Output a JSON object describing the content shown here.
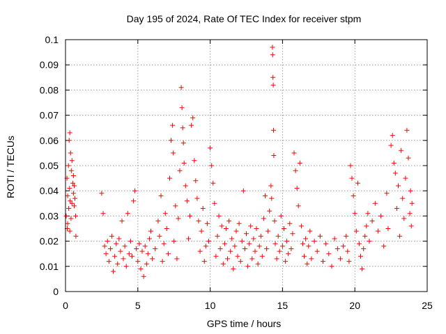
{
  "chart_data": {
    "type": "scatter",
    "title": "Day 195 of 2024, Rate Of TEC Index for receiver stpm",
    "xlabel": "GPS time / hours",
    "ylabel": "ROTI / TECUs",
    "xlim": [
      0,
      25
    ],
    "ylim": [
      0,
      0.1
    ],
    "xticks": [
      0,
      5,
      10,
      15,
      20,
      25
    ],
    "xtick_labels": [
      "0",
      "5",
      "10",
      "15",
      "20",
      "25"
    ],
    "yticks": [
      0,
      0.01,
      0.02,
      0.03,
      0.04,
      0.05,
      0.06,
      0.07,
      0.08,
      0.09,
      0.1
    ],
    "ytick_labels": [
      "0",
      "0.01",
      "0.02",
      "0.03",
      "0.04",
      "0.05",
      "0.06",
      "0.07",
      "0.08",
      "0.09",
      "0.1"
    ],
    "grid": true,
    "marker": "+",
    "color": "#ff0000",
    "series": [
      {
        "name": "ROTI",
        "points": [
          [
            0.05,
            0.03
          ],
          [
            0.1,
            0.045
          ],
          [
            0.12,
            0.025
          ],
          [
            0.15,
            0.038
          ],
          [
            0.2,
            0.05
          ],
          [
            0.22,
            0.033
          ],
          [
            0.25,
            0.06
          ],
          [
            0.28,
            0.041
          ],
          [
            0.3,
            0.063
          ],
          [
            0.32,
            0.036
          ],
          [
            0.35,
            0.055
          ],
          [
            0.38,
            0.029
          ],
          [
            0.4,
            0.048
          ],
          [
            0.45,
            0.035
          ],
          [
            0.5,
            0.043
          ],
          [
            0.55,
            0.039
          ],
          [
            0.6,
            0.034
          ],
          [
            0.65,
            0.037
          ],
          [
            0.7,
            0.03
          ],
          [
            0.72,
            0.022
          ],
          [
            0.15,
            0.027
          ],
          [
            0.3,
            0.024
          ],
          [
            0.45,
            0.052
          ],
          [
            0.55,
            0.046
          ],
          [
            0.6,
            0.042
          ],
          [
            2.5,
            0.039
          ],
          [
            2.6,
            0.031
          ],
          [
            2.7,
            0.018
          ],
          [
            2.8,
            0.015
          ],
          [
            2.9,
            0.02
          ],
          [
            3.0,
            0.012
          ],
          [
            3.1,
            0.017
          ],
          [
            3.2,
            0.022
          ],
          [
            3.3,
            0.008
          ],
          [
            3.4,
            0.014
          ],
          [
            3.5,
            0.019
          ],
          [
            3.6,
            0.011
          ],
          [
            3.7,
            0.021
          ],
          [
            3.8,
            0.016
          ],
          [
            3.9,
            0.028
          ],
          [
            4.0,
            0.013
          ],
          [
            4.1,
            0.018
          ],
          [
            4.2,
            0.01
          ],
          [
            4.3,
            0.031
          ],
          [
            4.4,
            0.015
          ],
          [
            4.5,
            0.02
          ],
          [
            4.6,
            0.014
          ],
          [
            4.7,
            0.036
          ],
          [
            4.8,
            0.04
          ],
          [
            4.9,
            0.017
          ],
          [
            5.0,
            0.012
          ],
          [
            5.1,
            0.019
          ],
          [
            5.2,
            0.009
          ],
          [
            5.3,
            0.016
          ],
          [
            5.4,
            0.006
          ],
          [
            5.5,
            0.018
          ],
          [
            5.6,
            0.011
          ],
          [
            5.7,
            0.015
          ],
          [
            5.8,
            0.021
          ],
          [
            5.9,
            0.024
          ],
          [
            6.0,
            0.013
          ],
          [
            6.2,
            0.017
          ],
          [
            6.4,
            0.028
          ],
          [
            6.5,
            0.022
          ],
          [
            6.6,
            0.038
          ],
          [
            6.7,
            0.012
          ],
          [
            6.8,
            0.019
          ],
          [
            6.9,
            0.031
          ],
          [
            7.0,
            0.025
          ],
          [
            7.1,
            0.015
          ],
          [
            7.2,
            0.045
          ],
          [
            7.3,
            0.06
          ],
          [
            7.4,
            0.066
          ],
          [
            7.45,
            0.055
          ],
          [
            7.5,
            0.02
          ],
          [
            7.6,
            0.034
          ],
          [
            7.7,
            0.013
          ],
          [
            7.8,
            0.029
          ],
          [
            7.9,
            0.048
          ],
          [
            8.0,
            0.081
          ],
          [
            8.05,
            0.073
          ],
          [
            8.1,
            0.065
          ],
          [
            8.15,
            0.059
          ],
          [
            8.2,
            0.051
          ],
          [
            8.3,
            0.042
          ],
          [
            8.4,
            0.036
          ],
          [
            8.5,
            0.021
          ],
          [
            8.6,
            0.03
          ],
          [
            8.7,
            0.066
          ],
          [
            8.8,
            0.069
          ],
          [
            8.9,
            0.052
          ],
          [
            9.0,
            0.044
          ],
          [
            9.1,
            0.037
          ],
          [
            9.2,
            0.028
          ],
          [
            9.3,
            0.016
          ],
          [
            9.4,
            0.024
          ],
          [
            9.5,
            0.033
          ],
          [
            9.6,
            0.012
          ],
          [
            9.7,
            0.018
          ],
          [
            9.8,
            0.027
          ],
          [
            9.9,
            0.02
          ],
          [
            10.0,
            0.057
          ],
          [
            10.1,
            0.05
          ],
          [
            10.2,
            0.043
          ],
          [
            10.3,
            0.035
          ],
          [
            10.4,
            0.014
          ],
          [
            10.5,
            0.022
          ],
          [
            10.6,
            0.03
          ],
          [
            10.7,
            0.017
          ],
          [
            10.8,
            0.026
          ],
          [
            10.9,
            0.011
          ],
          [
            11.0,
            0.019
          ],
          [
            11.1,
            0.025
          ],
          [
            11.2,
            0.013
          ],
          [
            11.3,
            0.028
          ],
          [
            11.4,
            0.016
          ],
          [
            11.5,
            0.021
          ],
          [
            11.6,
            0.009
          ],
          [
            11.7,
            0.018
          ],
          [
            11.8,
            0.024
          ],
          [
            11.9,
            0.014
          ],
          [
            12.0,
            0.027
          ],
          [
            12.1,
            0.012
          ],
          [
            12.2,
            0.02
          ],
          [
            12.3,
            0.04
          ],
          [
            12.4,
            0.017
          ],
          [
            12.5,
            0.023
          ],
          [
            12.6,
            0.01
          ],
          [
            12.7,
            0.019
          ],
          [
            12.8,
            0.026
          ],
          [
            12.9,
            0.013
          ],
          [
            13.0,
            0.021
          ],
          [
            13.1,
            0.016
          ],
          [
            13.2,
            0.025
          ],
          [
            13.3,
            0.011
          ],
          [
            13.4,
            0.018
          ],
          [
            13.5,
            0.022
          ],
          [
            13.6,
            0.014
          ],
          [
            13.7,
            0.029
          ],
          [
            13.8,
            0.038
          ],
          [
            13.9,
            0.017
          ],
          [
            14.0,
            0.024
          ],
          [
            14.1,
            0.032
          ],
          [
            14.2,
            0.042
          ],
          [
            14.25,
            0.037
          ],
          [
            14.3,
            0.097
          ],
          [
            14.32,
            0.094
          ],
          [
            14.34,
            0.085
          ],
          [
            14.36,
            0.082
          ],
          [
            14.38,
            0.064
          ],
          [
            14.4,
            0.054
          ],
          [
            14.45,
            0.028
          ],
          [
            14.5,
            0.019
          ],
          [
            14.6,
            0.013
          ],
          [
            14.7,
            0.022
          ],
          [
            14.8,
            0.016
          ],
          [
            14.9,
            0.03
          ],
          [
            15.0,
            0.018
          ],
          [
            15.1,
            0.025
          ],
          [
            15.2,
            0.012
          ],
          [
            15.3,
            0.02
          ],
          [
            15.4,
            0.015
          ],
          [
            15.5,
            0.027
          ],
          [
            15.6,
            0.017
          ],
          [
            15.7,
            0.023
          ],
          [
            15.8,
            0.055
          ],
          [
            15.9,
            0.048
          ],
          [
            16.0,
            0.041
          ],
          [
            16.1,
            0.034
          ],
          [
            16.2,
            0.051
          ],
          [
            16.3,
            0.026
          ],
          [
            16.4,
            0.019
          ],
          [
            16.5,
            0.014
          ],
          [
            16.6,
            0.021
          ],
          [
            16.7,
            0.011
          ],
          [
            16.8,
            0.018
          ],
          [
            16.9,
            0.024
          ],
          [
            17.0,
            0.013
          ],
          [
            17.2,
            0.02
          ],
          [
            17.4,
            0.016
          ],
          [
            17.6,
            0.022
          ],
          [
            17.8,
            0.012
          ],
          [
            18.0,
            0.019
          ],
          [
            18.2,
            0.015
          ],
          [
            18.4,
            0.01
          ],
          [
            18.6,
            0.021
          ],
          [
            18.8,
            0.017
          ],
          [
            19.0,
            0.013
          ],
          [
            19.2,
            0.018
          ],
          [
            19.4,
            0.022
          ],
          [
            19.5,
            0.016
          ],
          [
            19.6,
            0.012
          ],
          [
            19.7,
            0.05
          ],
          [
            19.8,
            0.045
          ],
          [
            19.9,
            0.038
          ],
          [
            20.0,
            0.031
          ],
          [
            20.1,
            0.024
          ],
          [
            20.2,
            0.043
          ],
          [
            20.3,
            0.019
          ],
          [
            20.4,
            0.014
          ],
          [
            20.5,
            0.009
          ],
          [
            20.6,
            0.017
          ],
          [
            20.7,
            0.022
          ],
          [
            20.8,
            0.026
          ],
          [
            20.9,
            0.031
          ],
          [
            21.0,
            0.02
          ],
          [
            21.2,
            0.028
          ],
          [
            21.4,
            0.035
          ],
          [
            21.6,
            0.024
          ],
          [
            21.8,
            0.03
          ],
          [
            22.0,
            0.018
          ],
          [
            22.2,
            0.039
          ],
          [
            22.3,
            0.025
          ],
          [
            22.5,
            0.058
          ],
          [
            22.6,
            0.062
          ],
          [
            22.7,
            0.051
          ],
          [
            22.8,
            0.047
          ],
          [
            22.9,
            0.033
          ],
          [
            23.0,
            0.042
          ],
          [
            23.1,
            0.022
          ],
          [
            23.2,
            0.056
          ],
          [
            23.3,
            0.037
          ],
          [
            23.4,
            0.029
          ],
          [
            23.5,
            0.045
          ],
          [
            23.6,
            0.064
          ],
          [
            23.7,
            0.053
          ],
          [
            23.8,
            0.031
          ],
          [
            23.85,
            0.04
          ],
          [
            23.9,
            0.026
          ],
          [
            23.95,
            0.035
          ]
        ]
      }
    ]
  }
}
